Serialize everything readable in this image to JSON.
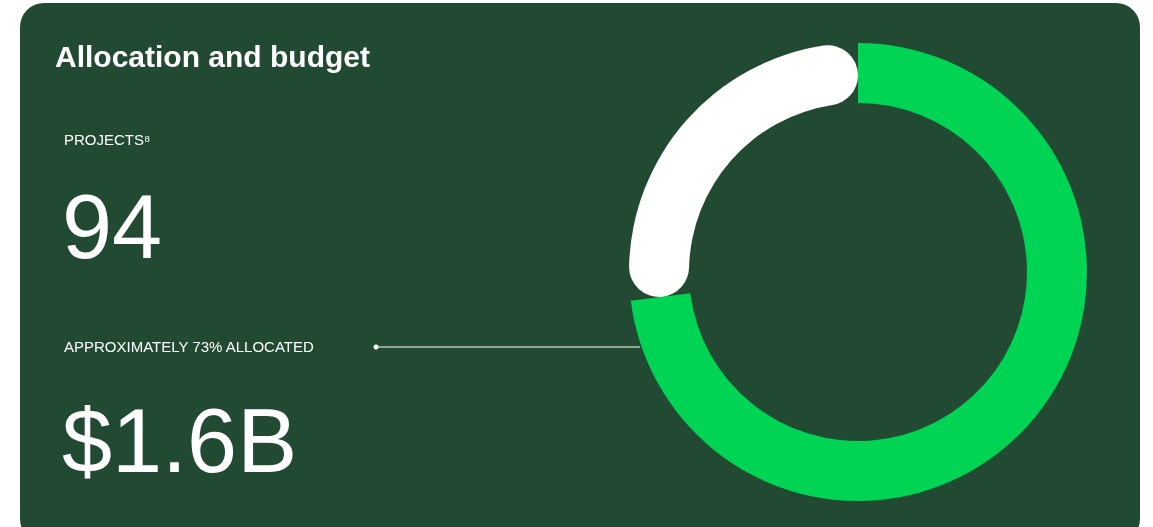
{
  "chart_data": {
    "type": "donut",
    "title": "Allocation and budget",
    "categories": [
      null,
      null
    ],
    "values": [
      73,
      27
    ],
    "colors": [
      "#00d455",
      "#ffffff"
    ],
    "annotations": [
      "PROJECTS⁸",
      "94",
      "APPROXIMATELY 73% ALLOCATED",
      "$1.6B"
    ]
  }
}
